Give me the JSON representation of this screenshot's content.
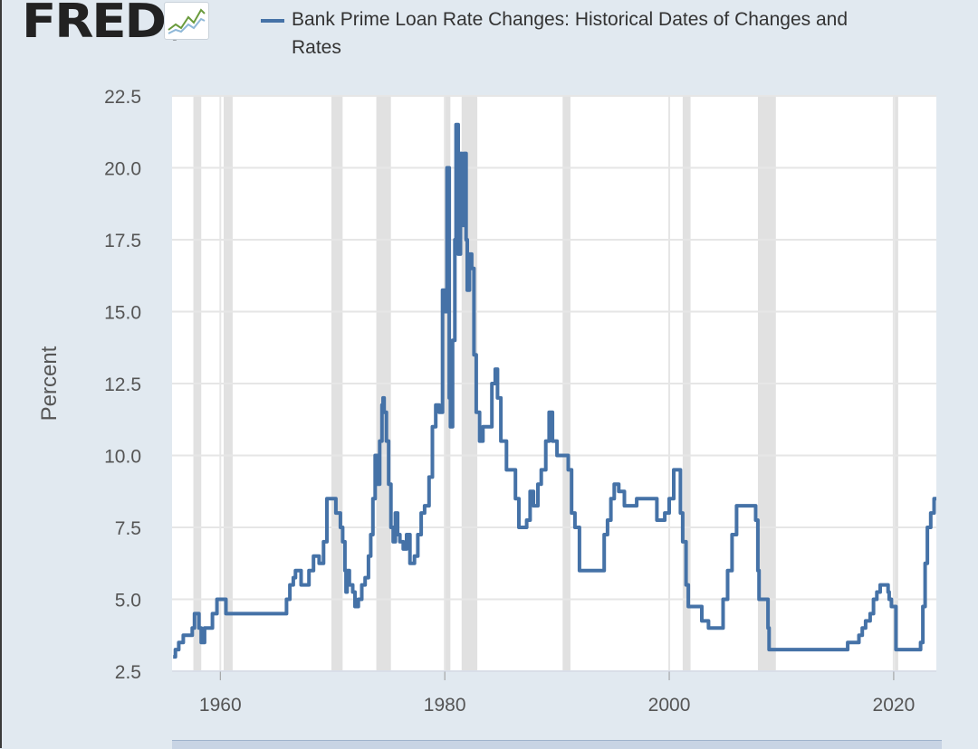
{
  "header": {
    "logo_text": "FRED",
    "logo_reg": "®",
    "logo_icon": "line-chart-icon"
  },
  "legend": {
    "label": "Bank Prime Loan Rate Changes: Historical Dates of Changes and Rates",
    "color": "#4572a7"
  },
  "colors": {
    "background": "#e1e9f0",
    "plot_background": "#ffffff",
    "gridline": "#e6e6e6",
    "recession": "#e1e1e1",
    "series": "#4572a7",
    "tick_label": "#555555"
  },
  "chart_data": {
    "type": "line",
    "title": "",
    "xlabel": "",
    "ylabel": "Percent",
    "xlim": [
      1955.7,
      2023.8
    ],
    "ylim": [
      2.5,
      22.5
    ],
    "x_ticks": [
      1960,
      1980,
      2000,
      2020
    ],
    "y_ticks": [
      "2.5",
      "5.0",
      "7.5",
      "10.0",
      "12.5",
      "15.0",
      "17.5",
      "20.0",
      "22.5"
    ],
    "grid": true,
    "legend_position": "top",
    "recessions": [
      [
        1957.6,
        1958.3
      ],
      [
        1960.3,
        1961.1
      ],
      [
        1969.9,
        1970.9
      ],
      [
        1973.9,
        1975.2
      ],
      [
        1980.0,
        1980.5
      ],
      [
        1981.5,
        1982.9
      ],
      [
        1990.5,
        1991.2
      ],
      [
        2001.2,
        2001.9
      ],
      [
        2007.9,
        2009.5
      ],
      [
        2020.1,
        2020.4
      ]
    ],
    "series": [
      {
        "name": "Bank Prime Loan Rate Changes: Historical Dates of Changes and Rates",
        "x": [
          1955.8,
          1956.0,
          1956.3,
          1956.7,
          1957.5,
          1957.7,
          1958.1,
          1958.3,
          1958.6,
          1958.8,
          1959.3,
          1959.7,
          1960.5,
          1960.7,
          1965.9,
          1966.2,
          1966.5,
          1966.7,
          1967.2,
          1967.3,
          1967.9,
          1968.3,
          1968.8,
          1969.2,
          1969.5,
          1970.3,
          1970.7,
          1970.9,
          1971.1,
          1971.2,
          1971.3,
          1971.5,
          1971.8,
          1972.0,
          1972.3,
          1972.6,
          1972.9,
          1973.2,
          1973.4,
          1973.6,
          1973.8,
          1974.0,
          1974.2,
          1974.4,
          1974.5,
          1974.6,
          1974.8,
          1975.0,
          1975.2,
          1975.4,
          1975.6,
          1975.8,
          1976.0,
          1976.3,
          1976.6,
          1976.9,
          1977.3,
          1977.6,
          1977.9,
          1978.2,
          1978.6,
          1978.9,
          1979.2,
          1979.5,
          1979.8,
          1980.0,
          1980.2,
          1980.4,
          1980.5,
          1980.7,
          1980.9,
          1981.0,
          1981.2,
          1981.4,
          1981.5,
          1981.7,
          1981.9,
          1982.0,
          1982.2,
          1982.4,
          1982.6,
          1982.8,
          1983.1,
          1983.4,
          1983.7,
          1984.2,
          1984.5,
          1984.7,
          1985.0,
          1985.5,
          1986.3,
          1986.6,
          1987.3,
          1987.6,
          1987.9,
          1988.3,
          1988.6,
          1989.0,
          1989.3,
          1989.6,
          1990.0,
          1990.3,
          1991.0,
          1991.3,
          1991.6,
          1992.0,
          1992.6,
          1993.5,
          1994.2,
          1994.5,
          1994.8,
          1995.1,
          1995.5,
          1996.0,
          1997.1,
          1998.7,
          1998.9,
          1999.3,
          1999.6,
          2000.0,
          2000.4,
          2000.9,
          2001.0,
          2001.2,
          2001.5,
          2001.7,
          2001.9,
          2002.9,
          2003.5,
          2004.5,
          2004.8,
          2005.2,
          2005.6,
          2006.0,
          2006.5,
          2007.7,
          2007.9,
          2008.0,
          2008.2,
          2008.8,
          2008.9,
          2009.0,
          2015.9,
          2016.9,
          2017.2,
          2017.5,
          2017.9,
          2018.2,
          2018.5,
          2018.8,
          2019.5,
          2019.6,
          2019.8,
          2020.2,
          2022.2,
          2022.4,
          2022.6,
          2022.8,
          2023.0,
          2023.3,
          2023.6
        ],
        "y": [
          3.0,
          3.25,
          3.5,
          3.75,
          4.0,
          4.5,
          4.0,
          3.5,
          4.0,
          4.0,
          4.5,
          5.0,
          4.5,
          4.5,
          5.0,
          5.5,
          5.75,
          6.0,
          5.5,
          5.5,
          6.0,
          6.5,
          6.25,
          7.0,
          8.5,
          8.0,
          7.5,
          7.0,
          6.0,
          5.25,
          6.0,
          5.5,
          5.25,
          4.75,
          5.0,
          5.5,
          5.75,
          6.5,
          7.25,
          8.5,
          10.0,
          9.0,
          10.5,
          11.75,
          12.0,
          11.5,
          10.5,
          9.0,
          7.5,
          7.0,
          8.0,
          7.25,
          7.0,
          6.75,
          7.25,
          6.25,
          6.5,
          7.25,
          8.0,
          8.25,
          9.25,
          11.0,
          11.75,
          11.5,
          15.75,
          15.0,
          20.0,
          12.0,
          11.0,
          14.0,
          17.5,
          21.5,
          17.0,
          20.5,
          18.0,
          20.5,
          17.5,
          15.75,
          17.0,
          16.5,
          13.5,
          11.5,
          10.5,
          11.0,
          11.0,
          12.5,
          13.0,
          12.0,
          10.5,
          9.5,
          8.5,
          7.5,
          7.75,
          8.75,
          8.25,
          9.0,
          9.5,
          10.5,
          11.5,
          10.5,
          10.0,
          10.0,
          9.5,
          8.0,
          7.5,
          6.0,
          6.0,
          6.0,
          7.25,
          7.75,
          8.5,
          9.0,
          8.75,
          8.25,
          8.5,
          8.5,
          7.75,
          7.75,
          8.0,
          8.5,
          9.5,
          9.5,
          8.0,
          7.0,
          5.5,
          4.75,
          4.75,
          4.25,
          4.0,
          4.0,
          5.0,
          6.0,
          7.25,
          8.25,
          8.25,
          7.75,
          6.0,
          5.0,
          5.0,
          4.0,
          3.25,
          3.25,
          3.5,
          3.75,
          4.0,
          4.25,
          4.5,
          5.0,
          5.25,
          5.5,
          5.25,
          5.0,
          4.75,
          3.25,
          3.25,
          3.5,
          4.75,
          6.25,
          7.5,
          8.0,
          8.5
        ]
      }
    ]
  }
}
